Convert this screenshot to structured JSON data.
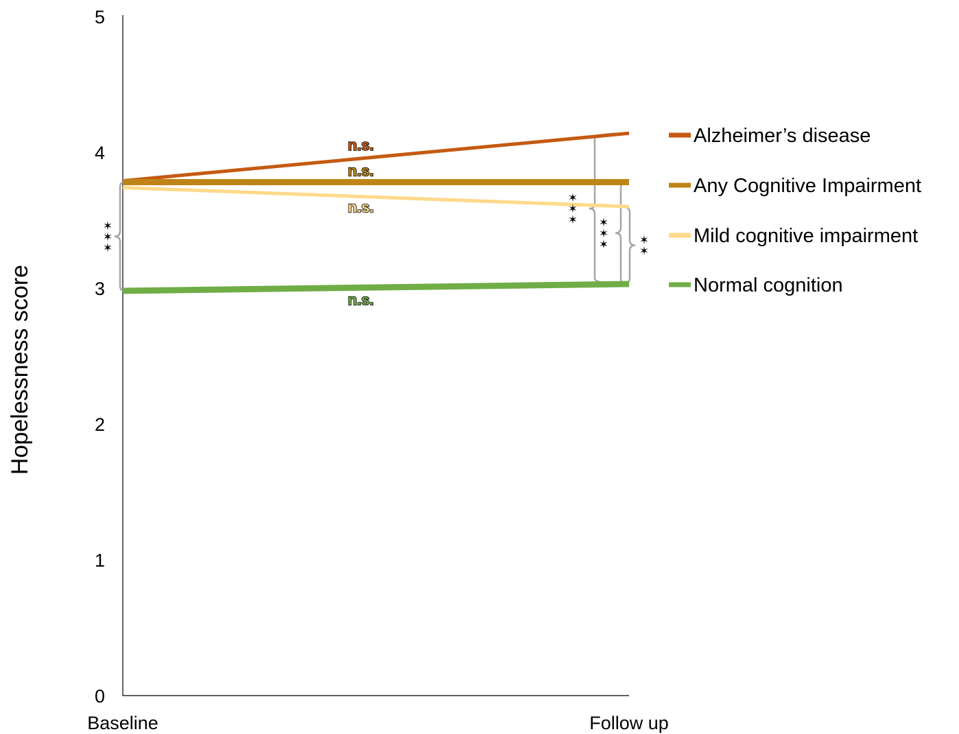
{
  "chart_data": {
    "type": "line",
    "title": "",
    "xlabel": "",
    "ylabel": "Hopelessness score",
    "categories": [
      "Baseline",
      "Follow up"
    ],
    "ylim": [
      0,
      5
    ],
    "yticks": [
      "0",
      "1",
      "2",
      "3",
      "4",
      "5"
    ],
    "grid": false,
    "legend_position": "right",
    "series": [
      {
        "name": "Alzheimer’s disease",
        "values": [
          3.79,
          4.14
        ],
        "color": "#c55a11",
        "change_label": "n.s."
      },
      {
        "name": "Any Cognitive Impairment",
        "values": [
          3.78,
          3.78
        ],
        "color": "#bf8418",
        "change_label": "n.s."
      },
      {
        "name": "Mild cognitive impairment",
        "values": [
          3.74,
          3.6
        ],
        "color": "#ffd98a",
        "change_label": "n.s."
      },
      {
        "name": "Normal cognition",
        "values": [
          2.98,
          3.03
        ],
        "color": "#70ad47",
        "change_label": "n.s."
      }
    ],
    "significance": [
      {
        "at": "Baseline",
        "between": [
          "Any Cognitive Impairment",
          "Normal cognition"
        ],
        "label": "***"
      },
      {
        "at": "Follow up",
        "between": [
          "Alzheimer’s disease",
          "Normal cognition"
        ],
        "label": "***"
      },
      {
        "at": "Follow up",
        "between": [
          "Any Cognitive Impairment",
          "Normal cognition"
        ],
        "label": "***"
      },
      {
        "at": "Follow up",
        "between": [
          "Mild cognitive impairment",
          "Normal cognition"
        ],
        "label": "**"
      }
    ]
  }
}
